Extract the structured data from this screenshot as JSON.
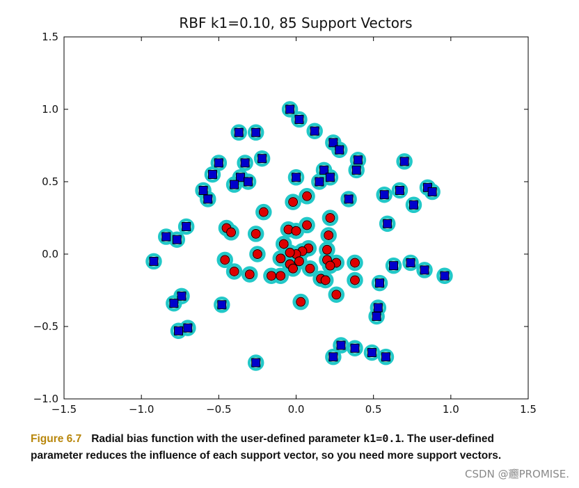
{
  "chart_data": {
    "type": "scatter",
    "title": "RBF k1=0.10, 85 Support Vectors",
    "xlabel": "",
    "ylabel": "",
    "xlim": [
      -1.5,
      1.5
    ],
    "ylim": [
      -1.0,
      1.5
    ],
    "xticks": [
      "−1.5",
      "−1.0",
      "−0.5",
      "0.0",
      "0.5",
      "1.0",
      "1.5"
    ],
    "yticks": [
      "−1.0",
      "−0.5",
      "0.0",
      "0.5",
      "1.0",
      "1.5"
    ],
    "xtick_values": [
      -1.5,
      -1.0,
      -0.5,
      0.0,
      0.5,
      1.0,
      1.5
    ],
    "ytick_values": [
      -1.0,
      -0.5,
      0.0,
      0.5,
      1.0,
      1.5
    ],
    "series": [
      {
        "name": "class +1 (blue squares)",
        "marker": "square",
        "color": "#0000cc",
        "points": [
          [
            -0.04,
            1.0
          ],
          [
            0.02,
            0.93
          ],
          [
            -0.37,
            0.84
          ],
          [
            -0.26,
            0.84
          ],
          [
            0.12,
            0.85
          ],
          [
            0.24,
            0.77
          ],
          [
            0.28,
            0.72
          ],
          [
            -0.22,
            0.66
          ],
          [
            -0.5,
            0.63
          ],
          [
            -0.33,
            0.63
          ],
          [
            0.4,
            0.65
          ],
          [
            0.7,
            0.64
          ],
          [
            -0.54,
            0.55
          ],
          [
            0.18,
            0.58
          ],
          [
            0.22,
            0.53
          ],
          [
            0.39,
            0.58
          ],
          [
            -0.36,
            0.53
          ],
          [
            -0.31,
            0.5
          ],
          [
            -0.4,
            0.48
          ],
          [
            -0.6,
            0.44
          ],
          [
            -0.57,
            0.38
          ],
          [
            0.0,
            0.53
          ],
          [
            0.15,
            0.5
          ],
          [
            0.34,
            0.38
          ],
          [
            0.57,
            0.41
          ],
          [
            0.67,
            0.44
          ],
          [
            0.85,
            0.46
          ],
          [
            0.88,
            0.43
          ],
          [
            0.76,
            0.34
          ],
          [
            0.59,
            0.21
          ],
          [
            -0.71,
            0.19
          ],
          [
            -0.84,
            0.12
          ],
          [
            -0.77,
            0.1
          ],
          [
            -0.92,
            -0.05
          ],
          [
            0.63,
            -0.08
          ],
          [
            0.74,
            -0.06
          ],
          [
            0.83,
            -0.11
          ],
          [
            0.96,
            -0.15
          ],
          [
            0.54,
            -0.2
          ],
          [
            -0.74,
            -0.29
          ],
          [
            -0.79,
            -0.34
          ],
          [
            -0.48,
            -0.35
          ],
          [
            0.53,
            -0.37
          ],
          [
            0.52,
            -0.43
          ],
          [
            -0.7,
            -0.51
          ],
          [
            -0.76,
            -0.53
          ],
          [
            -0.26,
            -0.75
          ],
          [
            0.29,
            -0.63
          ],
          [
            0.38,
            -0.65
          ],
          [
            0.49,
            -0.68
          ],
          [
            0.58,
            -0.71
          ],
          [
            0.24,
            -0.71
          ]
        ]
      },
      {
        "name": "class -1 (red circles)",
        "marker": "circle",
        "color": "#dd0000",
        "points": [
          [
            0.07,
            0.4
          ],
          [
            -0.21,
            0.29
          ],
          [
            -0.02,
            0.36
          ],
          [
            0.22,
            0.25
          ],
          [
            -0.45,
            0.18
          ],
          [
            -0.42,
            0.15
          ],
          [
            -0.26,
            0.14
          ],
          [
            -0.05,
            0.17
          ],
          [
            0.0,
            0.16
          ],
          [
            0.07,
            0.2
          ],
          [
            0.21,
            0.13
          ],
          [
            -0.08,
            0.07
          ],
          [
            -0.25,
            0.0
          ],
          [
            0.2,
            0.03
          ],
          [
            0.08,
            0.04
          ],
          [
            0.04,
            0.02
          ],
          [
            0.0,
            0.0
          ],
          [
            -0.04,
            0.01
          ],
          [
            -0.1,
            -0.03
          ],
          [
            -0.46,
            -0.04
          ],
          [
            0.2,
            -0.04
          ],
          [
            0.26,
            -0.06
          ],
          [
            0.38,
            -0.06
          ],
          [
            0.02,
            -0.05
          ],
          [
            -0.04,
            -0.07
          ],
          [
            0.09,
            -0.1
          ],
          [
            0.22,
            -0.08
          ],
          [
            -0.4,
            -0.12
          ],
          [
            -0.3,
            -0.14
          ],
          [
            -0.16,
            -0.15
          ],
          [
            -0.1,
            -0.15
          ],
          [
            -0.02,
            -0.1
          ],
          [
            0.16,
            -0.17
          ],
          [
            0.19,
            -0.18
          ],
          [
            0.38,
            -0.18
          ],
          [
            0.26,
            -0.28
          ],
          [
            0.03,
            -0.33
          ]
        ]
      }
    ],
    "support_vector_ring_color": "#22c8c8"
  },
  "caption": {
    "figure_label": "Figure 6.7",
    "text_before_code": "Radial bias function with the user-defined parameter ",
    "code": "k1=0.1",
    "text_after_code": ". The user-defined parameter reduces the influence of each support vector, so you need more support vectors."
  },
  "watermark": "CSDN @𰻝PROMISE."
}
